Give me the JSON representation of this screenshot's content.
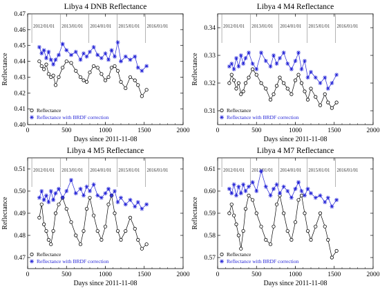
{
  "colors": {
    "reflectance": "#000000",
    "brdf": "#1f1fd6",
    "axis": "#000000",
    "year_line": "#808080"
  },
  "chart_data": [
    {
      "type": "scatter",
      "title": "Libya 4 DNB Reflectance",
      "xlabel": "Days since 2011-11-08",
      "ylabel": "Reflectance",
      "xlim": [
        0,
        2000
      ],
      "ylim": [
        0.4,
        0.47
      ],
      "xticks": [
        "0",
        "500",
        "1000",
        "1500",
        "2000"
      ],
      "yticks": [
        "0.40",
        "0.41",
        "0.42",
        "0.43",
        "0.44",
        "0.45",
        "0.46",
        "0.47"
      ],
      "year_marks": [
        {
          "x": 54,
          "label": "2012/01/01"
        },
        {
          "x": 420,
          "label": "2013/01/01"
        },
        {
          "x": 785,
          "label": "2014/01/01"
        },
        {
          "x": 1150,
          "label": "2015/01/01"
        },
        {
          "x": 1515,
          "label": "2016/01/01"
        }
      ],
      "legend": [
        "Reflectance",
        "Reflectance with BRDF correction"
      ],
      "series": [
        {
          "name": "Reflectance",
          "marker": "circle",
          "x": [
            150,
            180,
            210,
            240,
            270,
            300,
            330,
            360,
            400,
            450,
            500,
            560,
            620,
            680,
            720,
            760,
            800,
            850,
            900,
            950,
            1000,
            1040,
            1080,
            1120,
            1160,
            1200,
            1260,
            1320,
            1380,
            1420,
            1470,
            1530
          ],
          "y": [
            0.44,
            0.437,
            0.435,
            0.438,
            0.432,
            0.43,
            0.431,
            0.425,
            0.43,
            0.436,
            0.44,
            0.439,
            0.434,
            0.43,
            0.428,
            0.427,
            0.433,
            0.437,
            0.436,
            0.432,
            0.428,
            0.43,
            0.436,
            0.437,
            0.434,
            0.427,
            0.423,
            0.43,
            0.428,
            0.425,
            0.418,
            0.422
          ]
        },
        {
          "name": "Reflectance with BRDF correction",
          "marker": "asterisk",
          "x": [
            150,
            180,
            210,
            240,
            270,
            300,
            330,
            360,
            400,
            450,
            500,
            560,
            620,
            680,
            720,
            760,
            800,
            850,
            900,
            950,
            1000,
            1040,
            1080,
            1120,
            1160,
            1200,
            1260,
            1320,
            1380,
            1420,
            1470,
            1530
          ],
          "y": [
            0.449,
            0.445,
            0.447,
            0.442,
            0.446,
            0.441,
            0.438,
            0.441,
            0.444,
            0.451,
            0.447,
            0.444,
            0.446,
            0.441,
            0.445,
            0.443,
            0.446,
            0.449,
            0.444,
            0.442,
            0.445,
            0.441,
            0.447,
            0.443,
            0.452,
            0.44,
            0.443,
            0.441,
            0.443,
            0.436,
            0.434,
            0.437
          ]
        }
      ]
    },
    {
      "type": "scatter",
      "title": "Libya 4 M4 Reflectance",
      "xlabel": "Days since 2011-11-08",
      "ylabel": "Reflectance",
      "xlim": [
        0,
        2000
      ],
      "ylim": [
        0.305,
        0.345
      ],
      "xticks": [
        "0",
        "500",
        "1000",
        "1500",
        "2000"
      ],
      "yticks": [
        "0.31",
        "0.32",
        "0.33",
        "0.34"
      ],
      "ytick_values": [
        0.31,
        0.32,
        0.33,
        0.34
      ],
      "year_marks": [
        {
          "x": 54,
          "label": "2012/01/01"
        },
        {
          "x": 420,
          "label": "2013/01/01"
        },
        {
          "x": 785,
          "label": "2014/01/01"
        },
        {
          "x": 1150,
          "label": "2015/01/01"
        },
        {
          "x": 1515,
          "label": "2016/01/01"
        }
      ],
      "legend": [
        "Reflectance",
        "Reflectance with BRDF correction"
      ],
      "series": [
        {
          "name": "Reflectance",
          "marker": "circle",
          "x": [
            150,
            180,
            210,
            240,
            270,
            300,
            330,
            360,
            400,
            450,
            500,
            560,
            620,
            680,
            720,
            760,
            800,
            850,
            900,
            950,
            1000,
            1040,
            1080,
            1120,
            1160,
            1200,
            1260,
            1320,
            1380,
            1420,
            1470,
            1530
          ],
          "y": [
            0.32,
            0.323,
            0.321,
            0.318,
            0.32,
            0.316,
            0.317,
            0.32,
            0.322,
            0.325,
            0.323,
            0.32,
            0.318,
            0.314,
            0.316,
            0.319,
            0.322,
            0.32,
            0.318,
            0.316,
            0.321,
            0.323,
            0.32,
            0.317,
            0.314,
            0.318,
            0.315,
            0.312,
            0.316,
            0.313,
            0.311,
            0.313
          ]
        },
        {
          "name": "Reflectance with BRDF correction",
          "marker": "asterisk",
          "x": [
            150,
            180,
            210,
            240,
            270,
            300,
            330,
            360,
            400,
            450,
            500,
            560,
            620,
            680,
            720,
            760,
            800,
            850,
            900,
            950,
            1000,
            1040,
            1080,
            1120,
            1160,
            1200,
            1260,
            1320,
            1380,
            1420,
            1470,
            1530
          ],
          "y": [
            0.326,
            0.327,
            0.325,
            0.329,
            0.326,
            0.33,
            0.327,
            0.329,
            0.331,
            0.327,
            0.325,
            0.331,
            0.328,
            0.326,
            0.33,
            0.327,
            0.329,
            0.331,
            0.327,
            0.325,
            0.328,
            0.331,
            0.325,
            0.328,
            0.322,
            0.324,
            0.322,
            0.32,
            0.322,
            0.318,
            0.32,
            0.323
          ]
        }
      ]
    },
    {
      "type": "scatter",
      "title": "Libya 4 M5 Reflectance",
      "xlabel": "Days since 2011-11-08",
      "ylabel": "Reflectance",
      "xlim": [
        0,
        2000
      ],
      "ylim": [
        0.465,
        0.515
      ],
      "xticks": [
        "0",
        "500",
        "1000",
        "1500",
        "2000"
      ],
      "yticks": [
        "0.47",
        "0.48",
        "0.49",
        "0.50",
        "0.51"
      ],
      "ytick_values": [
        0.47,
        0.48,
        0.49,
        0.5,
        0.51
      ],
      "year_marks": [
        {
          "x": 54,
          "label": "2012/01/01"
        },
        {
          "x": 420,
          "label": "2013/01/01"
        },
        {
          "x": 785,
          "label": "2014/01/01"
        },
        {
          "x": 1150,
          "label": "2015/01/01"
        },
        {
          "x": 1515,
          "label": "2016/01/01"
        }
      ],
      "legend": [
        "Reflectance",
        "Reflectance with BRDF correction"
      ],
      "series": [
        {
          "name": "Reflectance",
          "marker": "circle",
          "x": [
            150,
            180,
            210,
            240,
            270,
            300,
            330,
            360,
            400,
            450,
            500,
            560,
            620,
            680,
            720,
            760,
            800,
            850,
            900,
            950,
            1000,
            1040,
            1080,
            1120,
            1160,
            1200,
            1260,
            1320,
            1380,
            1420,
            1470,
            1530
          ],
          "y": [
            0.488,
            0.494,
            0.485,
            0.482,
            0.478,
            0.476,
            0.482,
            0.49,
            0.494,
            0.497,
            0.492,
            0.486,
            0.48,
            0.476,
            0.482,
            0.492,
            0.497,
            0.489,
            0.482,
            0.478,
            0.484,
            0.494,
            0.498,
            0.49,
            0.482,
            0.478,
            0.482,
            0.488,
            0.483,
            0.478,
            0.474,
            0.476
          ]
        },
        {
          "name": "Reflectance with BRDF correction",
          "marker": "asterisk",
          "x": [
            150,
            180,
            210,
            240,
            270,
            300,
            330,
            360,
            400,
            450,
            500,
            560,
            620,
            680,
            720,
            760,
            800,
            850,
            900,
            950,
            1000,
            1040,
            1080,
            1120,
            1160,
            1200,
            1260,
            1320,
            1380,
            1420,
            1470,
            1530
          ],
          "y": [
            0.497,
            0.5,
            0.496,
            0.498,
            0.495,
            0.5,
            0.496,
            0.499,
            0.501,
            0.497,
            0.5,
            0.505,
            0.499,
            0.501,
            0.498,
            0.502,
            0.5,
            0.503,
            0.498,
            0.497,
            0.499,
            0.501,
            0.498,
            0.5,
            0.495,
            0.497,
            0.494,
            0.496,
            0.493,
            0.495,
            0.492,
            0.494
          ]
        }
      ]
    },
    {
      "type": "scatter",
      "title": "Libya 4 M7 Reflectance",
      "xlabel": "Days since 2011-11-08",
      "ylabel": "Reflectance",
      "xlim": [
        0,
        2000
      ],
      "ylim": [
        0.565,
        0.615
      ],
      "xticks": [
        "0",
        "500",
        "1000",
        "1500",
        "2000"
      ],
      "yticks": [
        "0.57",
        "0.58",
        "0.59",
        "0.60",
        "0.61"
      ],
      "ytick_values": [
        0.57,
        0.58,
        0.59,
        0.6,
        0.61
      ],
      "year_marks": [
        {
          "x": 54,
          "label": "2012/01/01"
        },
        {
          "x": 420,
          "label": "2013/01/01"
        },
        {
          "x": 785,
          "label": "2014/01/01"
        },
        {
          "x": 1150,
          "label": "2015/01/01"
        },
        {
          "x": 1515,
          "label": "2016/01/01"
        }
      ],
      "legend": [
        "Reflectance",
        "Reflectance with BRDF correction"
      ],
      "series": [
        {
          "name": "Reflectance",
          "marker": "circle",
          "x": [
            150,
            180,
            210,
            240,
            270,
            300,
            330,
            360,
            400,
            450,
            500,
            560,
            620,
            680,
            720,
            760,
            800,
            850,
            900,
            950,
            1000,
            1040,
            1080,
            1120,
            1160,
            1200,
            1260,
            1320,
            1380,
            1420,
            1470,
            1530
          ],
          "y": [
            0.59,
            0.594,
            0.589,
            0.585,
            0.58,
            0.574,
            0.582,
            0.592,
            0.598,
            0.596,
            0.59,
            0.584,
            0.578,
            0.576,
            0.584,
            0.594,
            0.598,
            0.59,
            0.582,
            0.578,
            0.586,
            0.596,
            0.598,
            0.59,
            0.582,
            0.578,
            0.584,
            0.59,
            0.584,
            0.578,
            0.57,
            0.573
          ]
        },
        {
          "name": "Reflectance with BRDF correction",
          "marker": "asterisk",
          "x": [
            150,
            180,
            210,
            240,
            270,
            300,
            330,
            360,
            400,
            450,
            500,
            560,
            620,
            680,
            720,
            760,
            800,
            850,
            900,
            950,
            1000,
            1040,
            1080,
            1120,
            1160,
            1200,
            1260,
            1320,
            1380,
            1420,
            1470,
            1530
          ],
          "y": [
            0.601,
            0.599,
            0.603,
            0.598,
            0.602,
            0.599,
            0.603,
            0.6,
            0.602,
            0.604,
            0.6,
            0.609,
            0.602,
            0.598,
            0.601,
            0.603,
            0.599,
            0.602,
            0.6,
            0.597,
            0.601,
            0.604,
            0.6,
            0.598,
            0.601,
            0.599,
            0.597,
            0.598,
            0.595,
            0.597,
            0.593,
            0.596
          ]
        }
      ]
    }
  ]
}
